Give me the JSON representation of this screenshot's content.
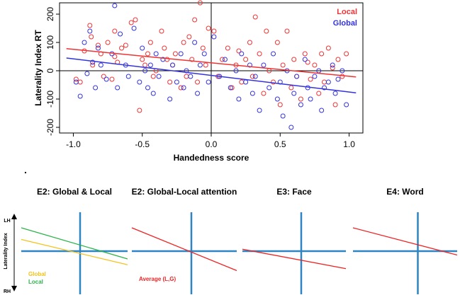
{
  "chart_data": [
    {
      "type": "scatter",
      "title": "",
      "xlabel": "Handedness score",
      "ylabel": "Laterality Index RT",
      "xlim": [
        -1.1,
        1.1
      ],
      "ylim": [
        -220,
        240
      ],
      "xticks": [
        -1.0,
        -0.5,
        0.0,
        0.5,
        1.0
      ],
      "xtick_labels": [
        "-1.0",
        "-0.5",
        "0.0",
        "0.5",
        "1.0"
      ],
      "yticks": [
        -200,
        -100,
        0,
        100,
        200
      ],
      "ytick_labels": [
        "-200",
        "-100",
        "0",
        "100",
        "200"
      ],
      "grid": false,
      "legend": "top-right",
      "reference_lines": {
        "x": 0,
        "y": 0
      },
      "series": [
        {
          "name": "Local",
          "color": "#ee3333",
          "marker": "open-circle",
          "regression": {
            "x": [
              -1.05,
              1.05
            ],
            "y": [
              78,
              -22
            ]
          },
          "points": [
            [
              -0.98,
              -30
            ],
            [
              -0.95,
              -40
            ],
            [
              -0.92,
              70
            ],
            [
              -0.88,
              160
            ],
            [
              -0.87,
              120
            ],
            [
              -0.86,
              20
            ],
            [
              -0.82,
              90
            ],
            [
              -0.8,
              60
            ],
            [
              -0.78,
              -20
            ],
            [
              -0.75,
              100
            ],
            [
              -0.72,
              -30
            ],
            [
              -0.7,
              140
            ],
            [
              -0.7,
              50
            ],
            [
              -0.68,
              30
            ],
            [
              -0.65,
              80
            ],
            [
              -0.62,
              90
            ],
            [
              -0.58,
              170
            ],
            [
              -0.55,
              180
            ],
            [
              -0.52,
              -140
            ],
            [
              -0.5,
              40
            ],
            [
              -0.48,
              20
            ],
            [
              -0.46,
              60
            ],
            [
              -0.44,
              100
            ],
            [
              -0.42,
              -20
            ],
            [
              -0.4,
              0
            ],
            [
              -0.36,
              140
            ],
            [
              -0.34,
              80
            ],
            [
              -0.32,
              40
            ],
            [
              -0.3,
              -40
            ],
            [
              -0.28,
              20
            ],
            [
              -0.26,
              60
            ],
            [
              -0.22,
              -60
            ],
            [
              -0.2,
              100
            ],
            [
              -0.18,
              -20
            ],
            [
              -0.16,
              120
            ],
            [
              -0.14,
              40
            ],
            [
              -0.12,
              180
            ],
            [
              -0.1,
              -40
            ],
            [
              -0.08,
              240
            ],
            [
              -0.06,
              80
            ],
            [
              -0.04,
              20
            ],
            [
              -0.02,
              150
            ],
            [
              0.02,
              140
            ],
            [
              0.05,
              -20
            ],
            [
              0.08,
              40
            ],
            [
              0.12,
              80
            ],
            [
              0.15,
              -60
            ],
            [
              0.18,
              20
            ],
            [
              0.2,
              70
            ],
            [
              0.22,
              -40
            ],
            [
              0.25,
              40
            ],
            [
              0.28,
              100
            ],
            [
              0.3,
              -20
            ],
            [
              0.32,
              190
            ],
            [
              0.35,
              60
            ],
            [
              0.38,
              -80
            ],
            [
              0.4,
              140
            ],
            [
              0.42,
              0
            ],
            [
              0.45,
              -40
            ],
            [
              0.48,
              100
            ],
            [
              0.5,
              -120
            ],
            [
              0.52,
              20
            ],
            [
              0.55,
              140
            ],
            [
              0.58,
              -60
            ],
            [
              0.6,
              40
            ],
            [
              0.62,
              -20
            ],
            [
              0.65,
              -100
            ],
            [
              0.68,
              60
            ],
            [
              0.7,
              30
            ],
            [
              0.72,
              -30
            ],
            [
              0.75,
              20
            ],
            [
              0.78,
              -80
            ],
            [
              0.8,
              60
            ],
            [
              0.82,
              -40
            ],
            [
              0.85,
              80
            ],
            [
              0.88,
              10
            ],
            [
              0.9,
              -120
            ],
            [
              0.92,
              40
            ],
            [
              0.95,
              -20
            ],
            [
              0.98,
              60
            ]
          ]
        },
        {
          "name": "Global",
          "color": "#3333dd",
          "marker": "open-circle",
          "regression": {
            "x": [
              -1.05,
              1.05
            ],
            "y": [
              45,
              -78
            ]
          },
          "points": [
            [
              -0.98,
              -40
            ],
            [
              -0.95,
              -90
            ],
            [
              -0.92,
              100
            ],
            [
              -0.9,
              -10
            ],
            [
              -0.88,
              140
            ],
            [
              -0.86,
              30
            ],
            [
              -0.84,
              -60
            ],
            [
              -0.82,
              80
            ],
            [
              -0.8,
              20
            ],
            [
              -0.76,
              -30
            ],
            [
              -0.72,
              60
            ],
            [
              -0.7,
              230
            ],
            [
              -0.68,
              -60
            ],
            [
              -0.66,
              130
            ],
            [
              -0.62,
              20
            ],
            [
              -0.6,
              -20
            ],
            [
              -0.56,
              150
            ],
            [
              -0.52,
              -40
            ],
            [
              -0.5,
              80
            ],
            [
              -0.48,
              0
            ],
            [
              -0.46,
              -60
            ],
            [
              -0.44,
              20
            ],
            [
              -0.42,
              -80
            ],
            [
              -0.4,
              60
            ],
            [
              -0.38,
              -20
            ],
            [
              -0.35,
              40
            ],
            [
              -0.3,
              -100
            ],
            [
              -0.28,
              20
            ],
            [
              -0.25,
              -40
            ],
            [
              -0.22,
              60
            ],
            [
              -0.2,
              -60
            ],
            [
              -0.18,
              0
            ],
            [
              -0.15,
              -20
            ],
            [
              -0.12,
              100
            ],
            [
              -0.1,
              -80
            ],
            [
              -0.08,
              20
            ],
            [
              -0.05,
              60
            ],
            [
              -0.02,
              -40
            ],
            [
              0.02,
              120
            ],
            [
              0.06,
              -20
            ],
            [
              0.1,
              40
            ],
            [
              0.14,
              -60
            ],
            [
              0.18,
              0
            ],
            [
              0.2,
              -100
            ],
            [
              0.22,
              60
            ],
            [
              0.25,
              -40
            ],
            [
              0.28,
              20
            ],
            [
              0.3,
              -80
            ],
            [
              0.32,
              -20
            ],
            [
              0.35,
              -140
            ],
            [
              0.38,
              20
            ],
            [
              0.42,
              -60
            ],
            [
              0.45,
              60
            ],
            [
              0.48,
              -100
            ],
            [
              0.5,
              -40
            ],
            [
              0.52,
              -160
            ],
            [
              0.55,
              0
            ],
            [
              0.58,
              -200
            ],
            [
              0.6,
              -80
            ],
            [
              0.62,
              -20
            ],
            [
              0.65,
              -120
            ],
            [
              0.68,
              40
            ],
            [
              0.7,
              -60
            ],
            [
              0.72,
              -100
            ],
            [
              0.75,
              -20
            ],
            [
              0.78,
              0
            ],
            [
              0.8,
              -140
            ],
            [
              0.82,
              -60
            ],
            [
              0.85,
              -40
            ],
            [
              0.88,
              20
            ],
            [
              0.9,
              -80
            ],
            [
              0.92,
              -30
            ],
            [
              0.95,
              0
            ],
            [
              0.98,
              -120
            ]
          ]
        }
      ]
    },
    {
      "type": "line",
      "title": "E2: Global & Local",
      "xlabel": "",
      "ylabel": "Laterality Index",
      "ytop_label": "LH",
      "ybottom_label": "RH",
      "xlim": [
        -1,
        1
      ],
      "ylim": [
        -1,
        1
      ],
      "legend": "bottom-left",
      "series": [
        {
          "name": "Global",
          "color": "#f4c21c",
          "x": [
            -1,
            1
          ],
          "y": [
            0.3,
            -0.35
          ]
        },
        {
          "name": "Local",
          "color": "#2bb34a",
          "x": [
            -1,
            1
          ],
          "y": [
            0.6,
            -0.2
          ]
        }
      ]
    },
    {
      "type": "line",
      "title": "E2: Global-Local attention",
      "xlabel": "",
      "ylabel": "",
      "xlim": [
        -1,
        1
      ],
      "ylim": [
        -1,
        1
      ],
      "legend": "bottom-left",
      "series": [
        {
          "name": "Average (L,G)",
          "color": "#ee2222",
          "x": [
            -1,
            1
          ],
          "y": [
            0.6,
            -0.5
          ]
        }
      ]
    },
    {
      "type": "line",
      "title": "E3: Face",
      "xlabel": "",
      "ylabel": "",
      "xlim": [
        -1,
        1
      ],
      "ylim": [
        -1,
        1
      ],
      "series": [
        {
          "color": "#ee2222",
          "x": [
            -1,
            1
          ],
          "y": [
            0.05,
            -0.45
          ]
        }
      ]
    },
    {
      "type": "line",
      "title": "E4: Word",
      "xlabel": "",
      "ylabel": "",
      "xlim": [
        -1,
        1
      ],
      "ylim": [
        -1,
        1
      ],
      "series": [
        {
          "color": "#ee2222",
          "x": [
            -1,
            1
          ],
          "y": [
            0.6,
            -0.1
          ]
        }
      ]
    }
  ],
  "separator_mark": "."
}
